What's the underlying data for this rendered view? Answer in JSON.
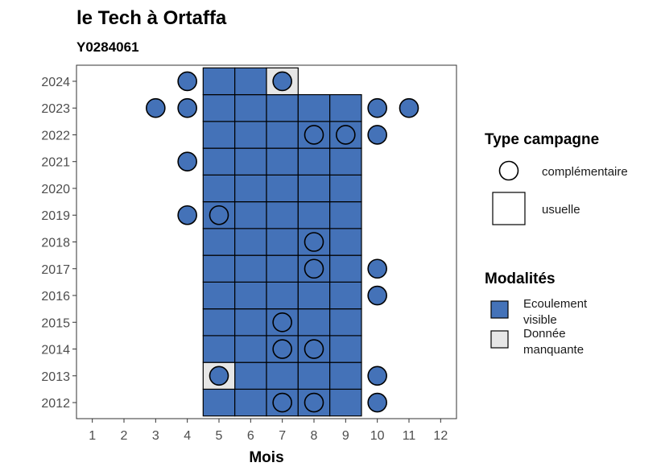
{
  "chart_data": {
    "type": "heatmap",
    "title": "le Tech à Ortaffa",
    "subtitle": "Y0284061",
    "xlabel": "Mois",
    "ylabel": "",
    "x_ticks": [
      1,
      2,
      3,
      4,
      5,
      6,
      7,
      8,
      9,
      10,
      11,
      12
    ],
    "y_ticks": [
      2012,
      2013,
      2014,
      2015,
      2016,
      2017,
      2018,
      2019,
      2020,
      2021,
      2022,
      2023,
      2024
    ],
    "xlim": [
      0.5,
      12.5
    ],
    "ylim": [
      2011.4,
      2024.6
    ],
    "colors": {
      "Ecoulement visible": "#4472b8",
      "Donnée manquante": "#e6e6e6"
    },
    "usuelle": [
      {
        "year": 2012,
        "months": [
          5,
          6,
          7,
          8,
          9
        ],
        "modalite": "Ecoulement visible"
      },
      {
        "year": 2013,
        "months": [
          6,
          7,
          8,
          9
        ],
        "modalite": "Ecoulement visible"
      },
      {
        "year": 2013,
        "months": [
          5
        ],
        "modalite": "Donnée manquante"
      },
      {
        "year": 2014,
        "months": [
          5,
          6,
          7,
          8,
          9
        ],
        "modalite": "Ecoulement visible"
      },
      {
        "year": 2015,
        "months": [
          5,
          6,
          7,
          8,
          9
        ],
        "modalite": "Ecoulement visible"
      },
      {
        "year": 2016,
        "months": [
          5,
          6,
          7,
          8,
          9
        ],
        "modalite": "Ecoulement visible"
      },
      {
        "year": 2017,
        "months": [
          5,
          6,
          7,
          8,
          9
        ],
        "modalite": "Ecoulement visible"
      },
      {
        "year": 2018,
        "months": [
          5,
          6,
          7,
          8,
          9
        ],
        "modalite": "Ecoulement visible"
      },
      {
        "year": 2019,
        "months": [
          5,
          6,
          7,
          8,
          9
        ],
        "modalite": "Ecoulement visible"
      },
      {
        "year": 2020,
        "months": [
          5,
          6,
          7,
          8,
          9
        ],
        "modalite": "Ecoulement visible"
      },
      {
        "year": 2021,
        "months": [
          5,
          6,
          7,
          8,
          9
        ],
        "modalite": "Ecoulement visible"
      },
      {
        "year": 2022,
        "months": [
          5,
          6,
          7,
          8,
          9
        ],
        "modalite": "Ecoulement visible"
      },
      {
        "year": 2023,
        "months": [
          5,
          6,
          7,
          8,
          9
        ],
        "modalite": "Ecoulement visible"
      },
      {
        "year": 2024,
        "months": [
          5,
          6
        ],
        "modalite": "Ecoulement visible"
      },
      {
        "year": 2024,
        "months": [
          7
        ],
        "modalite": "Donnée manquante"
      }
    ],
    "complementaire": [
      {
        "year": 2012,
        "months": [
          7,
          8,
          10
        ],
        "modalite": "Ecoulement visible"
      },
      {
        "year": 2013,
        "months": [
          5,
          10
        ],
        "modalite": "Ecoulement visible"
      },
      {
        "year": 2014,
        "months": [
          7,
          8
        ],
        "modalite": "Ecoulement visible"
      },
      {
        "year": 2015,
        "months": [
          7
        ],
        "modalite": "Ecoulement visible"
      },
      {
        "year": 2016,
        "months": [
          10
        ],
        "modalite": "Ecoulement visible"
      },
      {
        "year": 2017,
        "months": [
          8,
          10
        ],
        "modalite": "Ecoulement visible"
      },
      {
        "year": 2018,
        "months": [
          8
        ],
        "modalite": "Ecoulement visible"
      },
      {
        "year": 2019,
        "months": [
          4,
          5
        ],
        "modalite": "Ecoulement visible"
      },
      {
        "year": 2021,
        "months": [
          4
        ],
        "modalite": "Ecoulement visible"
      },
      {
        "year": 2022,
        "months": [
          8,
          9,
          10
        ],
        "modalite": "Ecoulement visible"
      },
      {
        "year": 2023,
        "months": [
          3,
          4,
          10,
          11
        ],
        "modalite": "Ecoulement visible"
      },
      {
        "year": 2024,
        "months": [
          4,
          7
        ],
        "modalite": "Ecoulement visible"
      }
    ],
    "legend_type": {
      "title": "Type campagne",
      "entries": [
        "complémentaire",
        "usuelle"
      ]
    },
    "legend_modalite": {
      "title": "Modalités",
      "entries": [
        "Ecoulement\nvisible",
        "Donnée\nmanquante"
      ]
    },
    "legend_placement": "right",
    "grid": false
  }
}
